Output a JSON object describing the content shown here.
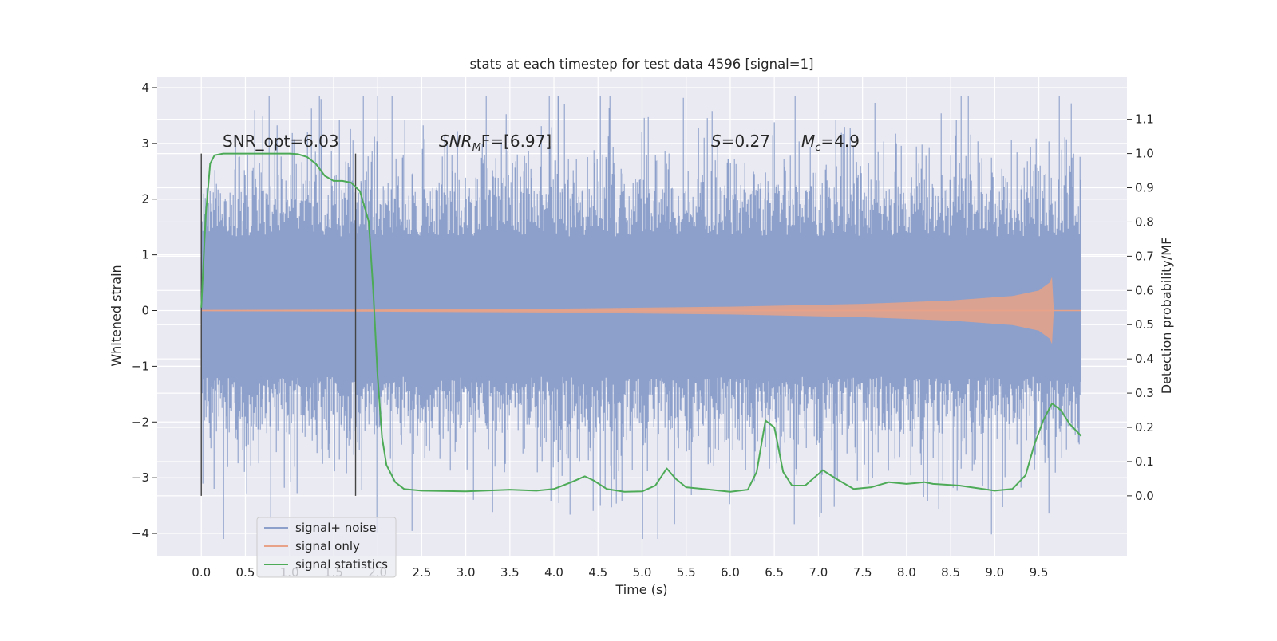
{
  "chart_data": {
    "type": "line",
    "title": "stats at each timestep for test data 4596 [signal=1]",
    "xlabel": "Time (s)",
    "ylabel": "Whitened strain",
    "y2label": "Detection probability/MF",
    "xlim": [
      -0.5,
      10.5
    ],
    "ylim": [
      -4.4,
      4.2
    ],
    "y2lim": [
      -0.175,
      1.225
    ],
    "grid": true,
    "legend_position": "lower-left",
    "x_ticks": [
      "0.0",
      "0.5",
      "1.0",
      "1.5",
      "2.0",
      "2.5",
      "3.0",
      "3.5",
      "4.0",
      "4.5",
      "5.0",
      "5.5",
      "6.0",
      "6.5",
      "7.0",
      "7.5",
      "8.0",
      "8.5",
      "9.0",
      "9.5"
    ],
    "y_ticks": [
      "4",
      "3",
      "2",
      "1",
      "0",
      "−1",
      "−2",
      "−3",
      "−4"
    ],
    "y2_ticks": [
      "1.1",
      "1.0",
      "0.9",
      "0.8",
      "0.7",
      "0.6",
      "0.5",
      "0.4",
      "0.3",
      "0.2",
      "0.1",
      "0.0"
    ],
    "annotations": {
      "snr_opt": "SNR_opt=6.03",
      "snr_mf_main": "SNR",
      "snr_mf_sub": "M",
      "snr_mf_rest": "F=[6.97]",
      "s_main": "S",
      "s_rest": "=0.27",
      "mc_main": "M",
      "mc_sub": "c",
      "mc_rest": "=4.9"
    },
    "vertical_markers_x": [
      0.0,
      1.75
    ],
    "series": [
      {
        "name": "signal+ noise",
        "color": "#8da0cb",
        "x_range": [
          0.0,
          9.98
        ],
        "typical_band": [
          -1.7,
          1.9
        ],
        "spike_range": [
          -4.1,
          3.85
        ]
      },
      {
        "name": "signal only",
        "color": "#e8a287",
        "x_range": [
          0.0,
          9.98
        ],
        "envelope": [
          [
            0.0,
            0.01
          ],
          [
            2.0,
            0.02
          ],
          [
            4.0,
            0.035
          ],
          [
            6.0,
            0.07
          ],
          [
            7.5,
            0.12
          ],
          [
            8.5,
            0.18
          ],
          [
            9.2,
            0.26
          ],
          [
            9.5,
            0.36
          ],
          [
            9.62,
            0.5
          ],
          [
            9.65,
            0.6
          ],
          [
            9.67,
            0.0
          ]
        ]
      },
      {
        "name": "signal statistics",
        "color": "#4daa57",
        "axis": "right",
        "points": [
          [
            0.0,
            0.55
          ],
          [
            0.05,
            0.82
          ],
          [
            0.1,
            0.97
          ],
          [
            0.15,
            0.995
          ],
          [
            0.25,
            1.0
          ],
          [
            1.0,
            1.0
          ],
          [
            1.1,
            0.998
          ],
          [
            1.2,
            0.99
          ],
          [
            1.3,
            0.97
          ],
          [
            1.4,
            0.935
          ],
          [
            1.5,
            0.92
          ],
          [
            1.6,
            0.92
          ],
          [
            1.7,
            0.915
          ],
          [
            1.8,
            0.89
          ],
          [
            1.9,
            0.8
          ],
          [
            1.95,
            0.6
          ],
          [
            2.0,
            0.35
          ],
          [
            2.05,
            0.17
          ],
          [
            2.1,
            0.09
          ],
          [
            2.2,
            0.04
          ],
          [
            2.3,
            0.02
          ],
          [
            2.5,
            0.015
          ],
          [
            3.0,
            0.013
          ],
          [
            3.5,
            0.018
          ],
          [
            3.8,
            0.015
          ],
          [
            4.0,
            0.02
          ],
          [
            4.2,
            0.04
          ],
          [
            4.35,
            0.057
          ],
          [
            4.45,
            0.045
          ],
          [
            4.6,
            0.02
          ],
          [
            4.8,
            0.012
          ],
          [
            5.0,
            0.013
          ],
          [
            5.15,
            0.03
          ],
          [
            5.28,
            0.08
          ],
          [
            5.38,
            0.05
          ],
          [
            5.5,
            0.025
          ],
          [
            6.0,
            0.012
          ],
          [
            6.2,
            0.018
          ],
          [
            6.3,
            0.07
          ],
          [
            6.4,
            0.22
          ],
          [
            6.5,
            0.2
          ],
          [
            6.6,
            0.07
          ],
          [
            6.7,
            0.03
          ],
          [
            6.85,
            0.03
          ],
          [
            7.05,
            0.075
          ],
          [
            7.2,
            0.05
          ],
          [
            7.4,
            0.02
          ],
          [
            7.6,
            0.025
          ],
          [
            7.8,
            0.04
          ],
          [
            8.0,
            0.035
          ],
          [
            8.2,
            0.04
          ],
          [
            8.3,
            0.035
          ],
          [
            8.6,
            0.03
          ],
          [
            9.0,
            0.015
          ],
          [
            9.2,
            0.02
          ],
          [
            9.35,
            0.06
          ],
          [
            9.45,
            0.15
          ],
          [
            9.55,
            0.22
          ],
          [
            9.65,
            0.27
          ],
          [
            9.75,
            0.25
          ],
          [
            9.85,
            0.21
          ],
          [
            9.98,
            0.175
          ]
        ]
      }
    ]
  }
}
